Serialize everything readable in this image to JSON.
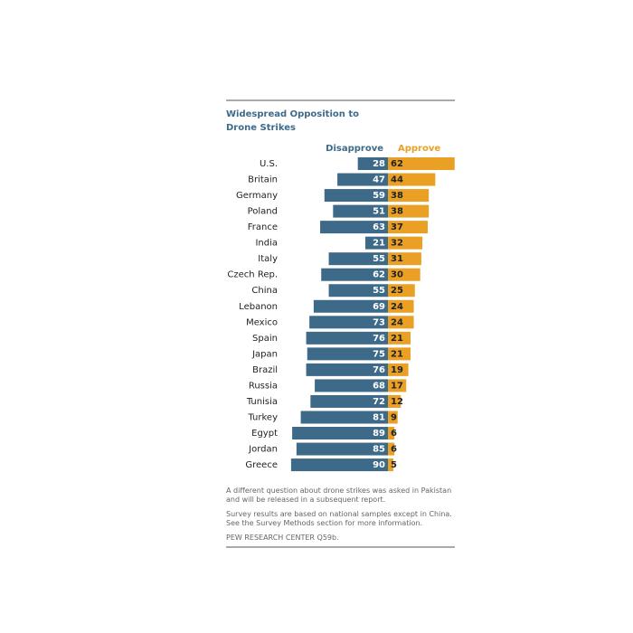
{
  "chart_data": {
    "type": "diverging_bar",
    "title": "Widespread Opposition to Drone Strikes",
    "categories": [
      "U.S.",
      "Britain",
      "Germany",
      "Poland",
      "France",
      "India",
      "Italy",
      "Czech Rep.",
      "China",
      "Lebanon",
      "Mexico",
      "Spain",
      "Japan",
      "Brazil",
      "Russia",
      "Tunisia",
      "Turkey",
      "Egypt",
      "Jordan",
      "Greece"
    ],
    "series": [
      {
        "name": "Disapprove",
        "color": "#3e6a8a",
        "values": [
          28,
          47,
          59,
          51,
          63,
          21,
          55,
          62,
          55,
          69,
          73,
          76,
          75,
          76,
          68,
          72,
          81,
          89,
          85,
          90
        ]
      },
      {
        "name": "Approve",
        "color": "#e9a024",
        "values": [
          62,
          44,
          38,
          38,
          37,
          32,
          31,
          30,
          25,
          24,
          24,
          21,
          21,
          19,
          17,
          12,
          9,
          6,
          6,
          5
        ]
      }
    ],
    "notes": [
      "A different question about drone strikes was asked in Pakistan and will be released in a subsequent report.",
      "Survey results are based on national samples except in China. See the Survey  Methods section for more information."
    ],
    "source": "PEW RESEARCH CENTER Q59b."
  }
}
